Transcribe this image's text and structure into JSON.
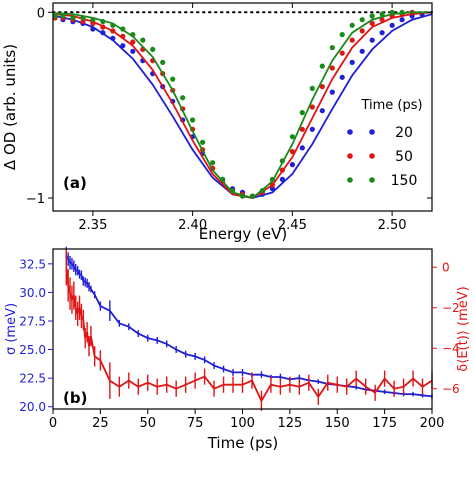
{
  "chart_data": [
    {
      "type": "scatter",
      "panel_label": "(a)",
      "xlabel": "Energy (eV)",
      "ylabel": "Δ OD (arb. units)",
      "xlim": [
        2.33,
        2.52
      ],
      "ylim": [
        -1.07,
        0.05
      ],
      "xticks": [
        2.35,
        2.4,
        2.45,
        2.5
      ],
      "xtick_labels": [
        "2.35",
        "2.40",
        "2.45",
        "2.50"
      ],
      "yticks": [
        0,
        -1
      ],
      "ytick_labels": [
        "0",
        "−1"
      ],
      "zero_line": "dotted",
      "legend": {
        "title": "Time (ps)",
        "placement": "right"
      },
      "series": [
        {
          "name": "20",
          "color": "#1f1fd6",
          "points": [
            [
              2.331,
              -0.03
            ],
            [
              2.335,
              -0.04
            ],
            [
              2.34,
              -0.05
            ],
            [
              2.345,
              -0.06
            ],
            [
              2.35,
              -0.09
            ],
            [
              2.355,
              -0.11
            ],
            [
              2.36,
              -0.14
            ],
            [
              2.365,
              -0.18
            ],
            [
              2.37,
              -0.21
            ],
            [
              2.375,
              -0.26
            ],
            [
              2.38,
              -0.33
            ],
            [
              2.385,
              -0.4
            ],
            [
              2.39,
              -0.48
            ],
            [
              2.395,
              -0.58
            ],
            [
              2.4,
              -0.67
            ],
            [
              2.405,
              -0.76
            ],
            [
              2.41,
              -0.84
            ],
            [
              2.415,
              -0.9
            ],
            [
              2.42,
              -0.95
            ],
            [
              2.425,
              -0.97
            ],
            [
              2.43,
              -0.99
            ],
            [
              2.435,
              -0.98
            ],
            [
              2.44,
              -0.95
            ],
            [
              2.445,
              -0.9
            ],
            [
              2.45,
              -0.82
            ],
            [
              2.455,
              -0.73
            ],
            [
              2.46,
              -0.63
            ],
            [
              2.465,
              -0.53
            ],
            [
              2.47,
              -0.43
            ],
            [
              2.475,
              -0.35
            ],
            [
              2.48,
              -0.27
            ],
            [
              2.485,
              -0.21
            ],
            [
              2.49,
              -0.15
            ],
            [
              2.495,
              -0.11
            ],
            [
              2.5,
              -0.07
            ],
            [
              2.505,
              -0.04
            ],
            [
              2.51,
              -0.02
            ],
            [
              2.515,
              -0.01
            ]
          ],
          "fit": [
            [
              2.331,
              -0.02
            ],
            [
              2.34,
              -0.04
            ],
            [
              2.35,
              -0.08
            ],
            [
              2.36,
              -0.15
            ],
            [
              2.37,
              -0.25
            ],
            [
              2.38,
              -0.39
            ],
            [
              2.39,
              -0.56
            ],
            [
              2.4,
              -0.74
            ],
            [
              2.41,
              -0.89
            ],
            [
              2.42,
              -0.98
            ],
            [
              2.43,
              -1.0
            ],
            [
              2.44,
              -0.97
            ],
            [
              2.45,
              -0.87
            ],
            [
              2.46,
              -0.71
            ],
            [
              2.47,
              -0.52
            ],
            [
              2.48,
              -0.34
            ],
            [
              2.49,
              -0.2
            ],
            [
              2.5,
              -0.1
            ],
            [
              2.51,
              -0.04
            ],
            [
              2.52,
              -0.01
            ]
          ]
        },
        {
          "name": "50",
          "color": "#e01414",
          "points": [
            [
              2.331,
              -0.03
            ],
            [
              2.335,
              -0.03
            ],
            [
              2.34,
              -0.04
            ],
            [
              2.345,
              -0.05
            ],
            [
              2.35,
              -0.06
            ],
            [
              2.355,
              -0.08
            ],
            [
              2.36,
              -0.1
            ],
            [
              2.365,
              -0.13
            ],
            [
              2.37,
              -0.16
            ],
            [
              2.375,
              -0.2
            ],
            [
              2.38,
              -0.26
            ],
            [
              2.385,
              -0.33
            ],
            [
              2.39,
              -0.42
            ],
            [
              2.395,
              -0.52
            ],
            [
              2.4,
              -0.63
            ],
            [
              2.405,
              -0.74
            ],
            [
              2.41,
              -0.84
            ],
            [
              2.415,
              -0.91
            ],
            [
              2.42,
              -0.96
            ],
            [
              2.425,
              -0.98
            ],
            [
              2.43,
              -0.99
            ],
            [
              2.435,
              -0.97
            ],
            [
              2.44,
              -0.93
            ],
            [
              2.445,
              -0.85
            ],
            [
              2.45,
              -0.75
            ],
            [
              2.455,
              -0.63
            ],
            [
              2.46,
              -0.51
            ],
            [
              2.465,
              -0.4
            ],
            [
              2.47,
              -0.3
            ],
            [
              2.475,
              -0.22
            ],
            [
              2.48,
              -0.15
            ],
            [
              2.485,
              -0.1
            ],
            [
              2.49,
              -0.06
            ],
            [
              2.495,
              -0.04
            ],
            [
              2.5,
              -0.02
            ],
            [
              2.505,
              -0.01
            ],
            [
              2.51,
              0.0
            ]
          ],
          "fit": [
            [
              2.331,
              -0.01
            ],
            [
              2.34,
              -0.02
            ],
            [
              2.35,
              -0.05
            ],
            [
              2.36,
              -0.1
            ],
            [
              2.37,
              -0.18
            ],
            [
              2.38,
              -0.31
            ],
            [
              2.39,
              -0.49
            ],
            [
              2.4,
              -0.69
            ],
            [
              2.41,
              -0.87
            ],
            [
              2.42,
              -0.98
            ],
            [
              2.43,
              -1.0
            ],
            [
              2.44,
              -0.93
            ],
            [
              2.45,
              -0.78
            ],
            [
              2.46,
              -0.57
            ],
            [
              2.47,
              -0.36
            ],
            [
              2.48,
              -0.19
            ],
            [
              2.49,
              -0.08
            ],
            [
              2.5,
              -0.03
            ],
            [
              2.51,
              -0.01
            ],
            [
              2.52,
              0.0
            ]
          ]
        },
        {
          "name": "150",
          "color": "#1a8a1a",
          "points": [
            [
              2.331,
              -0.02
            ],
            [
              2.335,
              -0.02
            ],
            [
              2.34,
              -0.03
            ],
            [
              2.345,
              -0.03
            ],
            [
              2.35,
              -0.04
            ],
            [
              2.355,
              -0.05
            ],
            [
              2.36,
              -0.07
            ],
            [
              2.365,
              -0.09
            ],
            [
              2.37,
              -0.12
            ],
            [
              2.375,
              -0.15
            ],
            [
              2.38,
              -0.2
            ],
            [
              2.385,
              -0.27
            ],
            [
              2.39,
              -0.36
            ],
            [
              2.395,
              -0.46
            ],
            [
              2.4,
              -0.58
            ],
            [
              2.405,
              -0.7
            ],
            [
              2.41,
              -0.81
            ],
            [
              2.415,
              -0.9
            ],
            [
              2.42,
              -0.96
            ],
            [
              2.425,
              -0.99
            ],
            [
              2.43,
              -0.99
            ],
            [
              2.435,
              -0.96
            ],
            [
              2.44,
              -0.9
            ],
            [
              2.445,
              -0.8
            ],
            [
              2.45,
              -0.67
            ],
            [
              2.455,
              -0.54
            ],
            [
              2.46,
              -0.41
            ],
            [
              2.465,
              -0.29
            ],
            [
              2.47,
              -0.19
            ],
            [
              2.475,
              -0.12
            ],
            [
              2.48,
              -0.07
            ],
            [
              2.485,
              -0.04
            ],
            [
              2.49,
              -0.02
            ],
            [
              2.495,
              -0.01
            ],
            [
              2.5,
              0.0
            ],
            [
              2.505,
              0.0
            ]
          ],
          "fit": [
            [
              2.331,
              -0.005
            ],
            [
              2.34,
              -0.01
            ],
            [
              2.35,
              -0.03
            ],
            [
              2.36,
              -0.06
            ],
            [
              2.37,
              -0.13
            ],
            [
              2.38,
              -0.24
            ],
            [
              2.39,
              -0.42
            ],
            [
              2.4,
              -0.64
            ],
            [
              2.41,
              -0.85
            ],
            [
              2.42,
              -0.97
            ],
            [
              2.43,
              -1.0
            ],
            [
              2.44,
              -0.91
            ],
            [
              2.45,
              -0.71
            ],
            [
              2.46,
              -0.47
            ],
            [
              2.47,
              -0.26
            ],
            [
              2.48,
              -0.11
            ],
            [
              2.49,
              -0.04
            ],
            [
              2.5,
              -0.01
            ],
            [
              2.51,
              0.0
            ],
            [
              2.52,
              0.0
            ]
          ]
        }
      ]
    },
    {
      "type": "line",
      "panel_label": "(b)",
      "xlabel": "Time (ps)",
      "ylabel": "σ (meV)",
      "ylabel_right": "δ⟨E(t)⟩ (meV)",
      "xlim": [
        0,
        200
      ],
      "ylim": [
        19.8,
        33.8
      ],
      "ylim_right": [
        -7.0,
        0.9
      ],
      "xticks": [
        0,
        25,
        50,
        75,
        100,
        125,
        150,
        175,
        200
      ],
      "yticks": [
        20.0,
        22.5,
        25.0,
        27.5,
        30.0,
        32.5
      ],
      "ytick_labels": [
        "20.0",
        "22.5",
        "25.0",
        "27.5",
        "30.0",
        "32.5"
      ],
      "yticks_right": [
        0,
        -2,
        -4,
        -6
      ],
      "ytick_labels_right": [
        "0",
        "−2",
        "−4",
        "−6"
      ],
      "series": [
        {
          "name": "σ",
          "axis": "left",
          "color": "#1f1fd6",
          "x": [
            7,
            8,
            9,
            10,
            11,
            12,
            13,
            14,
            15,
            16,
            17,
            18,
            19,
            20,
            22,
            25,
            30,
            35,
            40,
            45,
            50,
            55,
            60,
            65,
            70,
            75,
            80,
            85,
            90,
            95,
            100,
            105,
            110,
            115,
            120,
            125,
            130,
            135,
            140,
            145,
            150,
            155,
            160,
            165,
            170,
            175,
            180,
            185,
            190,
            195,
            200
          ],
          "y": [
            33.2,
            32.9,
            32.6,
            32.5,
            32.3,
            32.0,
            31.9,
            31.6,
            31.5,
            31.0,
            30.9,
            30.8,
            30.5,
            30.3,
            29.8,
            28.8,
            28.4,
            27.3,
            27.0,
            26.4,
            26.0,
            25.8,
            25.5,
            25.0,
            24.6,
            24.4,
            24.1,
            23.6,
            23.3,
            23.0,
            23.0,
            22.8,
            22.8,
            22.6,
            22.6,
            22.4,
            22.5,
            22.3,
            22.2,
            22.0,
            21.9,
            21.8,
            21.7,
            21.5,
            21.4,
            21.3,
            21.2,
            21.1,
            21.1,
            21.0,
            20.9
          ],
          "err": [
            0.8,
            0.6,
            0.6,
            0.5,
            0.5,
            0.5,
            0.4,
            0.4,
            0.4,
            0.4,
            0.4,
            0.4,
            0.4,
            0.3,
            0.3,
            0.4,
            0.9,
            0.3,
            0.3,
            0.3,
            0.3,
            0.3,
            0.3,
            0.3,
            0.3,
            0.3,
            0.3,
            0.3,
            0.3,
            0.3,
            0.3,
            0.2,
            0.3,
            0.2,
            0.3,
            0.2,
            0.3,
            0.2,
            0.2,
            0.2,
            0.2,
            0.2,
            0.2,
            0.2,
            0.2,
            0.2,
            0.2,
            0.2,
            0.2,
            0.2,
            0.2
          ]
        },
        {
          "name": "δ⟨E(t)⟩",
          "axis": "right",
          "color": "#e01414",
          "x": [
            7,
            8,
            9,
            10,
            11,
            12,
            13,
            14,
            15,
            16,
            17,
            18,
            19,
            20,
            22,
            25,
            30,
            35,
            40,
            45,
            50,
            55,
            60,
            65,
            70,
            75,
            80,
            85,
            90,
            95,
            100,
            105,
            110,
            115,
            120,
            125,
            130,
            135,
            140,
            145,
            150,
            155,
            160,
            165,
            170,
            175,
            180,
            185,
            190,
            195,
            200
          ],
          "y": [
            0.0,
            -0.9,
            -1.3,
            -1.6,
            -1.4,
            -2.0,
            -2.3,
            -2.0,
            -2.4,
            -2.6,
            -3.5,
            -3.2,
            -3.9,
            -3.4,
            -4.4,
            -4.6,
            -5.6,
            -5.9,
            -5.6,
            -5.9,
            -5.7,
            -5.9,
            -5.8,
            -6.0,
            -5.8,
            -5.6,
            -5.4,
            -6.0,
            -5.8,
            -5.8,
            -5.8,
            -5.6,
            -6.6,
            -5.8,
            -5.9,
            -5.8,
            -5.9,
            -5.7,
            -6.4,
            -5.7,
            -5.8,
            -5.9,
            -5.5,
            -5.9,
            -6.2,
            -5.5,
            -6.0,
            -5.9,
            -5.5,
            -5.9,
            -5.6
          ],
          "err": [
            0.9,
            0.8,
            0.8,
            0.7,
            0.7,
            0.6,
            0.6,
            0.6,
            0.6,
            0.5,
            0.5,
            0.5,
            0.5,
            0.5,
            0.5,
            0.5,
            0.9,
            0.5,
            0.4,
            0.4,
            0.4,
            0.4,
            0.4,
            0.4,
            0.4,
            0.4,
            0.4,
            0.4,
            0.4,
            0.4,
            0.4,
            0.4,
            0.5,
            0.4,
            0.4,
            0.4,
            0.4,
            0.4,
            0.4,
            0.4,
            0.4,
            0.4,
            0.4,
            0.4,
            0.4,
            0.4,
            0.4,
            0.4,
            0.4,
            0.4,
            0.4
          ]
        }
      ]
    }
  ]
}
